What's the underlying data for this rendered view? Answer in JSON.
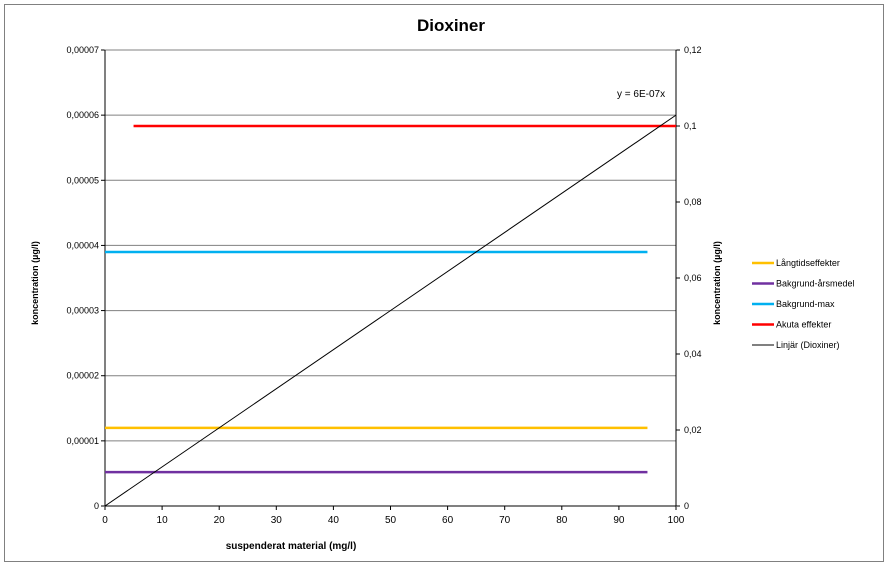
{
  "chart_data": {
    "type": "line",
    "title": "Dioxiner",
    "xlabel": "suspenderat material (mg/l)",
    "ylabel": "koncentration (µg/l)",
    "y2label": "koncentration (µg/l)",
    "xlim": [
      0,
      100
    ],
    "ylim": [
      0,
      7e-05
    ],
    "y2lim": [
      0,
      0.12
    ],
    "x_ticks": [
      "0",
      "10",
      "20",
      "30",
      "40",
      "50",
      "60",
      "70",
      "80",
      "90",
      "100"
    ],
    "y_ticks": [
      "0",
      "0,00001",
      "0,00002",
      "0,00003",
      "0,00004",
      "0,00005",
      "0,00006",
      "0,00007"
    ],
    "y2_ticks": [
      "0",
      "0,02",
      "0,04",
      "0,06",
      "0,08",
      "0,1",
      "0,12"
    ],
    "grid": "horizontal",
    "legend_position": "right",
    "series": [
      {
        "name": "Långtidseffekter",
        "color": "#FFC000",
        "axis": "y",
        "x": [
          0,
          95
        ],
        "y": [
          1.2e-05,
          1.2e-05
        ]
      },
      {
        "name": "Bakgrund-årsmedel",
        "color": "#7030A0",
        "axis": "y",
        "x": [
          0,
          95
        ],
        "y": [
          5.2e-06,
          5.2e-06
        ]
      },
      {
        "name": "Bakgrund-max",
        "color": "#00B0F0",
        "axis": "y",
        "x": [
          0,
          95
        ],
        "y": [
          3.9e-05,
          3.9e-05
        ]
      },
      {
        "name": "Akuta effekter",
        "color": "#FF0000",
        "axis": "y2",
        "x": [
          5,
          100
        ],
        "y": [
          0.1,
          0.1
        ]
      },
      {
        "name": "Linjär (Dioxiner)",
        "color": "#000000",
        "axis": "y",
        "x": [
          0,
          100
        ],
        "y": [
          0,
          6e-05
        ]
      }
    ],
    "annotation": "y = 6E-07x"
  }
}
